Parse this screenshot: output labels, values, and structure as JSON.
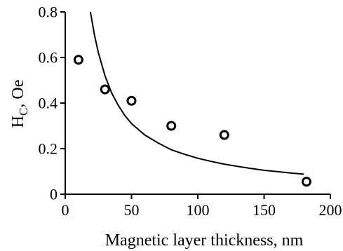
{
  "chart_data": {
    "type": "scatter",
    "title": "",
    "xlabel": "Magnetic layer thickness, nm",
    "ylabel": {
      "main": "H",
      "sub": "C",
      "rest": ", Oe"
    },
    "xlim": [
      0,
      200
    ],
    "ylim": [
      0,
      0.8
    ],
    "x_ticks": [
      0,
      50,
      100,
      150,
      200
    ],
    "x_tick_labels": [
      "0",
      "50",
      "100",
      "150",
      "200"
    ],
    "y_ticks": [
      0,
      0.2,
      0.4,
      0.6,
      0.8
    ],
    "y_tick_labels": [
      "0",
      "0.2",
      "0.4",
      "0.6",
      "0.8"
    ],
    "grid": false,
    "legend": "none",
    "series": [
      {
        "kind": "points",
        "marker": "open-circle",
        "x": [
          10,
          30,
          50,
          80,
          120,
          182
        ],
        "y": [
          0.59,
          0.46,
          0.41,
          0.3,
          0.26,
          0.055
        ]
      },
      {
        "kind": "line",
        "x": [
          19,
          22,
          25,
          30,
          35,
          40,
          45,
          50,
          60,
          70,
          80,
          90,
          100,
          110,
          120,
          130,
          140,
          150,
          160,
          170,
          180
        ],
        "y": [
          0.8,
          0.7,
          0.62,
          0.52,
          0.445,
          0.39,
          0.345,
          0.31,
          0.26,
          0.225,
          0.195,
          0.175,
          0.158,
          0.144,
          0.132,
          0.122,
          0.113,
          0.105,
          0.099,
          0.093,
          0.088
        ]
      }
    ]
  }
}
